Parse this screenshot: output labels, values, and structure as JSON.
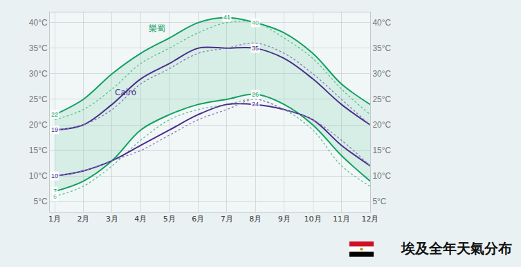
{
  "chart_data": {
    "type": "line",
    "title": "埃及全年天氣分布",
    "categories": [
      "1月",
      "2月",
      "3月",
      "4月",
      "5月",
      "6月",
      "7月",
      "8月",
      "9月",
      "10月",
      "11月",
      "12月"
    ],
    "ylim": [
      3,
      42
    ],
    "yticks": [
      {
        "value": 5,
        "label": "5°C"
      },
      {
        "value": 10,
        "label": "10°C"
      },
      {
        "value": 15,
        "label": "15°C"
      },
      {
        "value": 20,
        "label": "20°C"
      },
      {
        "value": 25,
        "label": "25°C"
      },
      {
        "value": 30,
        "label": "30°C"
      },
      {
        "value": 35,
        "label": "35°C"
      },
      {
        "value": 40,
        "label": "40°C"
      }
    ],
    "y2lim": [
      3,
      42
    ],
    "y2ticks": [
      {
        "value": 5,
        "label": "5°C"
      },
      {
        "value": 10,
        "label": "10°C"
      },
      {
        "value": 15,
        "label": "15°C"
      },
      {
        "value": 20,
        "label": "20°C"
      },
      {
        "value": 25,
        "label": "25°C"
      },
      {
        "value": 30,
        "label": "30°C"
      },
      {
        "value": 35,
        "label": "35°C"
      },
      {
        "value": 40,
        "label": "40°C"
      }
    ],
    "grid": true,
    "data_labels": true,
    "series": [
      {
        "name": "樂蜀",
        "color": "#10a060",
        "line_style": "solid",
        "values": [
          22,
          25,
          30,
          34,
          37,
          40,
          41,
          40,
          38,
          34,
          28,
          24
        ],
        "value_labels": [
          "22",
          null,
          null,
          null,
          null,
          null,
          "41",
          null,
          null,
          null,
          null,
          null
        ]
      },
      {
        "color": "#5cc08e",
        "line_style": "dotted",
        "values": [
          21,
          23,
          27,
          32,
          35,
          38,
          40,
          40,
          37,
          33,
          27,
          22
        ],
        "value_labels": [
          null,
          null,
          null,
          null,
          null,
          null,
          null,
          "40",
          null,
          null,
          null,
          null
        ]
      },
      {
        "color": "#10a060",
        "line_style": "solid",
        "values": [
          7,
          9,
          13,
          19,
          22,
          24,
          25,
          26,
          24,
          20,
          14,
          9
        ],
        "value_labels": [
          "7",
          null,
          null,
          null,
          null,
          null,
          null,
          "26",
          null,
          null,
          null,
          null
        ]
      },
      {
        "color": "#5cc08e",
        "line_style": "dotted",
        "values": [
          6,
          8,
          12,
          17,
          21,
          23,
          24,
          25,
          23,
          19,
          12,
          8
        ],
        "value_labels": [
          "6",
          null,
          null,
          null,
          null,
          null,
          null,
          null,
          null,
          null,
          null,
          null
        ]
      },
      {
        "name": "Cairo",
        "color": "#4a2c8c",
        "line_style": "solid",
        "values": [
          19,
          20,
          24,
          29,
          32,
          35,
          35,
          35,
          33,
          29,
          24,
          20
        ],
        "value_labels": [
          "19",
          null,
          null,
          null,
          null,
          null,
          null,
          "35",
          null,
          null,
          null,
          null
        ]
      },
      {
        "color": "#8a78b8",
        "line_style": "dotted",
        "values": [
          19,
          20,
          23,
          28,
          31,
          34,
          35,
          36,
          34,
          30,
          25,
          20
        ],
        "value_labels": [
          null,
          null,
          null,
          null,
          null,
          null,
          null,
          null,
          null,
          null,
          null,
          null
        ]
      },
      {
        "color": "#4a2c8c",
        "line_style": "solid",
        "values": [
          10,
          11,
          13,
          16,
          19,
          22,
          24,
          24,
          23,
          21,
          16,
          12
        ],
        "value_labels": [
          "10",
          null,
          null,
          null,
          null,
          null,
          null,
          "24",
          null,
          null,
          null,
          null
        ]
      },
      {
        "color": "#8a78b8",
        "line_style": "dotted",
        "values": [
          10,
          11,
          13,
          15,
          18,
          21,
          23,
          25,
          23,
          21,
          17,
          12
        ],
        "value_labels": [
          null,
          null,
          null,
          null,
          null,
          null,
          null,
          null,
          null,
          null,
          null,
          null
        ]
      }
    ]
  }
}
